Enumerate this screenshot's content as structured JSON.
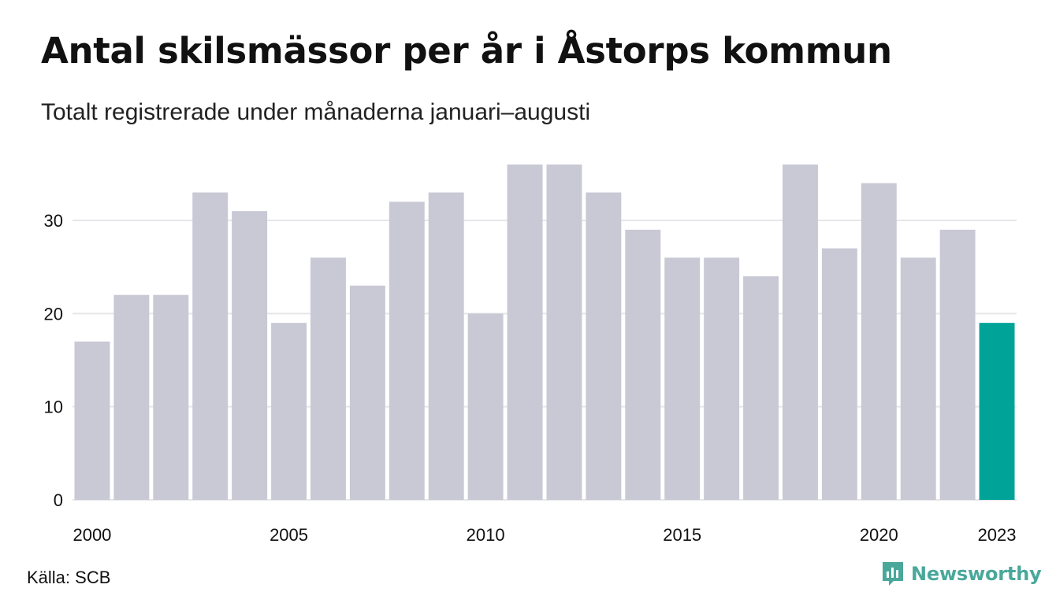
{
  "title": "Antal skilsmässor per år i Åstorps kommun",
  "subtitle": "Totalt registrerade under månaderna januari–augusti",
  "source": "Källa: SCB",
  "brand": {
    "name": "Newsworthy",
    "icon": "bar-chart-speech-bubble-icon",
    "color": "#4aa89b"
  },
  "colors": {
    "bar": "#c9c8d5",
    "highlight": "#00a398",
    "grid": "#e6e6ea",
    "text": "#111111"
  },
  "chart_data": {
    "type": "bar",
    "categories": [
      "2000",
      "2001",
      "2002",
      "2003",
      "2004",
      "2005",
      "2006",
      "2007",
      "2008",
      "2009",
      "2010",
      "2011",
      "2012",
      "2013",
      "2014",
      "2015",
      "2016",
      "2017",
      "2018",
      "2019",
      "2020",
      "2021",
      "2022",
      "2023"
    ],
    "values": [
      17,
      22,
      22,
      33,
      31,
      19,
      26,
      23,
      32,
      33,
      20,
      36,
      36,
      33,
      29,
      26,
      26,
      24,
      36,
      27,
      34,
      26,
      29,
      19
    ],
    "highlight_category": "2023",
    "x_tick_labels": [
      "2000",
      "2005",
      "2010",
      "2015",
      "2020",
      "2023"
    ],
    "y_ticks": [
      0,
      10,
      20,
      30
    ],
    "ylim": [
      0,
      36
    ],
    "xlabel": "",
    "ylabel": "",
    "grid": true,
    "legend": false
  }
}
